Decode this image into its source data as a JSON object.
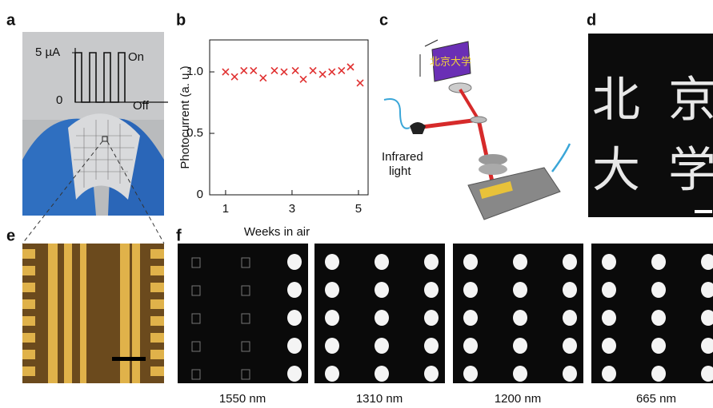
{
  "panels": {
    "a": {
      "label": "a",
      "current": "5 µA",
      "zero": "0",
      "on": "On",
      "off": "Off"
    },
    "b": {
      "label": "b"
    },
    "c": {
      "label": "c",
      "caption_lines": [
        "Infrared",
        "light"
      ]
    },
    "d": {
      "label": "d",
      "characters": [
        "北",
        "京",
        "大",
        "学"
      ]
    },
    "e": {
      "label": "e"
    },
    "f": {
      "label": "f",
      "wavelengths": [
        "1550 nm",
        "1310 nm",
        "1200 nm",
        "665 nm"
      ]
    }
  },
  "chart_data": {
    "type": "scatter",
    "xlabel": "Weeks in air",
    "ylabel": "Photocurrent (a. u.)",
    "x": [
      1,
      1.27,
      1.55,
      1.84,
      2.13,
      2.47,
      2.76,
      3.1,
      3.34,
      3.63,
      3.92,
      4.2,
      4.49,
      4.76,
      5.05
    ],
    "values": [
      1.0,
      0.96,
      1.01,
      1.01,
      0.95,
      1.01,
      1.0,
      1.01,
      0.94,
      1.01,
      0.98,
      1.0,
      1.01,
      1.04,
      0.91
    ],
    "color": "#e03030",
    "marker": "x",
    "xlim": [
      0.52,
      5.29
    ],
    "ylim": [
      0,
      1.26
    ],
    "xticks": [
      1,
      3,
      5
    ],
    "yticks": [
      0,
      0.5,
      {
        "value": 1,
        "label": "1.0"
      }
    ]
  }
}
